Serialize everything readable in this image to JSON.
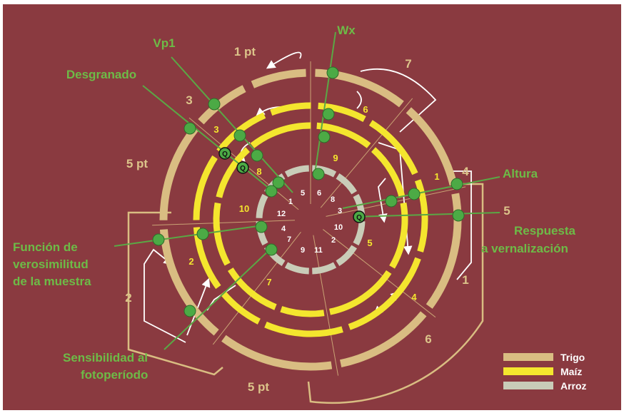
{
  "colors": {
    "background": "#8a3a40",
    "trigo": "#d9bd82",
    "maiz": "#f4e62e",
    "arroz": "#c9ccb8",
    "connector": "#5aa845",
    "marker_fill": "#4caa45",
    "label_green": "#6dbb47",
    "label_tan": "#dcc48a",
    "arrows": "#ffffff"
  },
  "trait_labels": {
    "wx": "Wx",
    "vp1": "Vp1",
    "desgranado": "Desgranado",
    "altura": "Altura",
    "respuesta_1": "Respuesta",
    "respuesta_2": "a vernalización",
    "funcion_1": "Función de",
    "funcion_2": "verosimilitud",
    "funcion_3": "de la muestra",
    "sensibilidad_1": "Sensibilidad al",
    "sensibilidad_2": "fotoperíodo"
  },
  "trigo_labels": {
    "l_1pt": "1 pt",
    "l_7": "7",
    "l_3": "3",
    "l_5pt_left": "5 pt",
    "l_4": "4",
    "l_5": "5",
    "l_1": "1",
    "l_6": "6",
    "l_2": "2",
    "l_5pt_bottom": "5 pt"
  },
  "maiz_labels": {
    "m_6": "6",
    "m_3": "3",
    "m_8": "8",
    "m_9": "9",
    "m_10": "10",
    "m_1": "1",
    "m_5": "5",
    "m_4": "4",
    "m_2": "2",
    "m_7": "7"
  },
  "arroz_labels": {
    "r_5": "5",
    "r_6": "6",
    "r_8": "8",
    "r_3": "3",
    "r_10": "10",
    "r_2": "2",
    "r_11": "11",
    "r_9": "9",
    "r_7": "7",
    "r_4": "4",
    "r_12": "12",
    "r_1": "1"
  },
  "qtl_marker_label": "Q",
  "legend": {
    "trigo": "Trigo",
    "maiz": "Maíz",
    "arroz": "Arroz"
  }
}
